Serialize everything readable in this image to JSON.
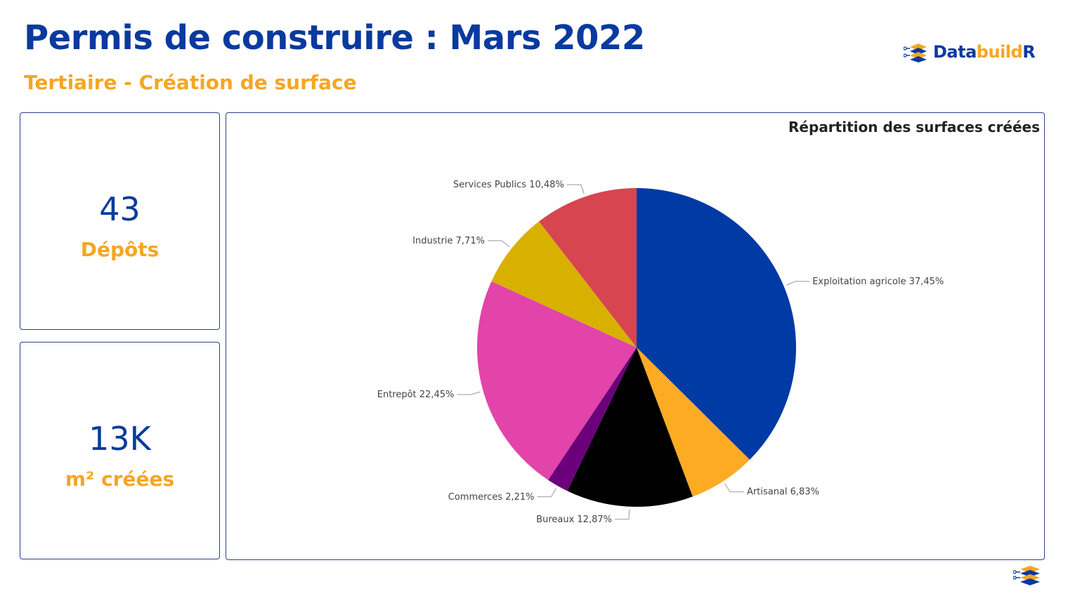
{
  "header": {
    "title": "Permis de construire : Mars 2022",
    "subtitle": "Tertiaire - Création de surface",
    "logo": {
      "part1": "Data",
      "part2": "build",
      "part3": "R"
    }
  },
  "kpis": [
    {
      "value": "43",
      "label": "Dépôts"
    },
    {
      "value": "13K",
      "label": "m² créées"
    }
  ],
  "colors": {
    "primary": "#0a3a9e",
    "accent": "#f5a623",
    "border": "#2b3f8f"
  },
  "chart_data": {
    "type": "pie",
    "title": "Répartition des surfaces créées",
    "start_angle_deg": 0,
    "direction": "clockwise",
    "slices": [
      {
        "name": "Exploitation agricole",
        "value": 37.45,
        "label": "Exploitation agricole 37,45%",
        "color": "#003aa5"
      },
      {
        "name": "Artisanal",
        "value": 6.83,
        "label": "Artisanal 6,83%",
        "color": "#fdab22"
      },
      {
        "name": "Bureaux",
        "value": 12.87,
        "label": "Bureaux 12,87%",
        "color": "#000000"
      },
      {
        "name": "Commerces",
        "value": 2.21,
        "label": "Commerces 2,21%",
        "color": "#6b007a"
      },
      {
        "name": "Entrepôt",
        "value": 22.45,
        "label": "Entrepôt 22,45%",
        "color": "#e244a9"
      },
      {
        "name": "Industrie",
        "value": 7.71,
        "label": "Industrie 7,71%",
        "color": "#d8b000"
      },
      {
        "name": "Services Publics",
        "value": 10.48,
        "label": "Services Publics 10,48%",
        "color": "#d64550"
      }
    ]
  }
}
